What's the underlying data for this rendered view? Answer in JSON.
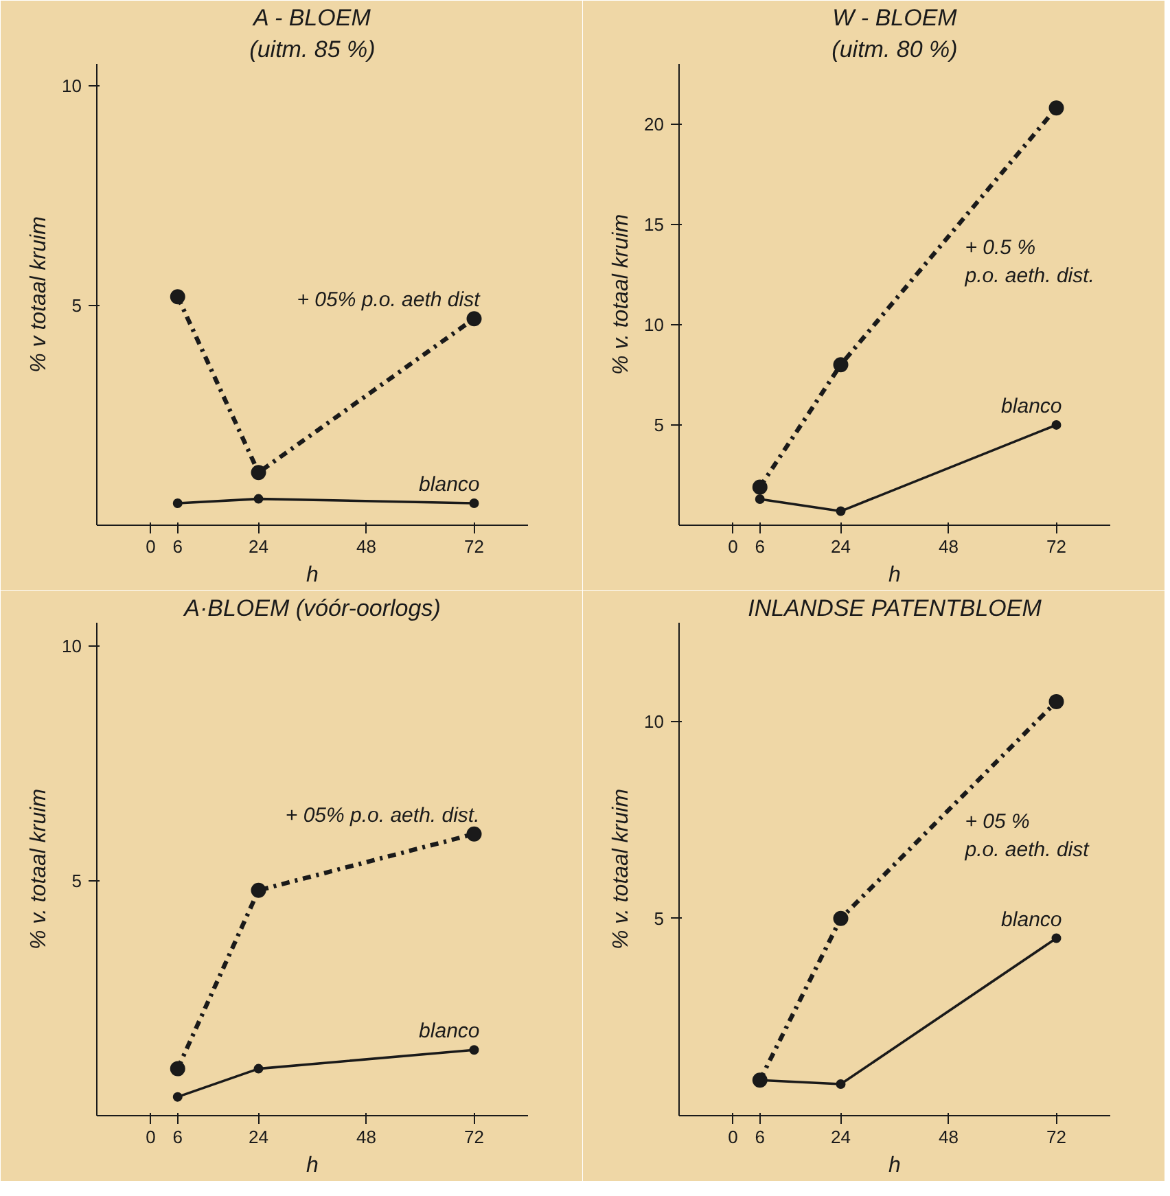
{
  "chart_data": [
    {
      "type": "line",
      "title": "A - BLOEM",
      "subtitle": "(uitm. 85 %)",
      "xlabel": "h",
      "ylabel": "% v totaal kruim",
      "x": [
        6,
        24,
        72
      ],
      "xlim": [
        -12,
        84
      ],
      "xticks": [
        0,
        6,
        24,
        48,
        72
      ],
      "ylim": [
        0,
        10.5
      ],
      "yticks": [
        5,
        10
      ],
      "marker": "circle",
      "series": [
        {
          "name": "+ 05% p.o. aeth dist",
          "color": "#1a1a1a",
          "line_style": "dashdot",
          "values": [
            5.2,
            1.2,
            4.7
          ]
        },
        {
          "name": "blanco",
          "color": "#1a1a1a",
          "line_style": "solid",
          "values": [
            0.5,
            0.6,
            0.5
          ]
        }
      ]
    },
    {
      "type": "line",
      "title": "W - BLOEM",
      "subtitle": "(uitm. 80 %)",
      "xlabel": "h",
      "ylabel": "% v. totaal kruim",
      "x": [
        6,
        24,
        72
      ],
      "xlim": [
        -12,
        84
      ],
      "xticks": [
        0,
        6,
        24,
        48,
        72
      ],
      "ylim": [
        0,
        23
      ],
      "yticks": [
        5,
        10,
        15,
        20
      ],
      "marker": "circle",
      "series": [
        {
          "name": "+ 0.5 %\np.o. aeth. dist.",
          "color": "#1a1a1a",
          "line_style": "dashdot",
          "values": [
            1.9,
            8.0,
            20.8
          ]
        },
        {
          "name": "blanco",
          "color": "#1a1a1a",
          "line_style": "solid",
          "values": [
            1.3,
            0.7,
            5.0
          ]
        }
      ]
    },
    {
      "type": "line",
      "title": "A·BLOEM (vóór-oorlogs)",
      "xlabel": "h",
      "ylabel": "% v. totaal kruim",
      "x": [
        6,
        24,
        72
      ],
      "xlim": [
        -12,
        84
      ],
      "xticks": [
        0,
        6,
        24,
        48,
        72
      ],
      "ylim": [
        0,
        10.5
      ],
      "yticks": [
        5,
        10
      ],
      "marker": "circle",
      "series": [
        {
          "name": "+ 05% p.o. aeth. dist.",
          "color": "#1a1a1a",
          "line_style": "dashdot",
          "values": [
            1.0,
            4.8,
            6.0
          ]
        },
        {
          "name": "blanco",
          "color": "#1a1a1a",
          "line_style": "solid",
          "values": [
            0.4,
            1.0,
            1.4
          ]
        }
      ]
    },
    {
      "type": "line",
      "title": "INLANDSE PATENTBLOEM",
      "xlabel": "h",
      "ylabel": "% v. totaal kruim",
      "x": [
        6,
        24,
        72
      ],
      "xlim": [
        -12,
        84
      ],
      "xticks": [
        0,
        6,
        24,
        48,
        72
      ],
      "ylim": [
        0,
        12.5
      ],
      "yticks": [
        5,
        10
      ],
      "marker": "circle",
      "series": [
        {
          "name": "+ 05 %\np.o. aeth. dist",
          "color": "#1a1a1a",
          "line_style": "dashdot",
          "values": [
            0.9,
            5.0,
            10.5
          ]
        },
        {
          "name": "blanco",
          "color": "#1a1a1a",
          "line_style": "solid",
          "values": [
            0.9,
            0.8,
            4.5
          ]
        }
      ]
    }
  ]
}
